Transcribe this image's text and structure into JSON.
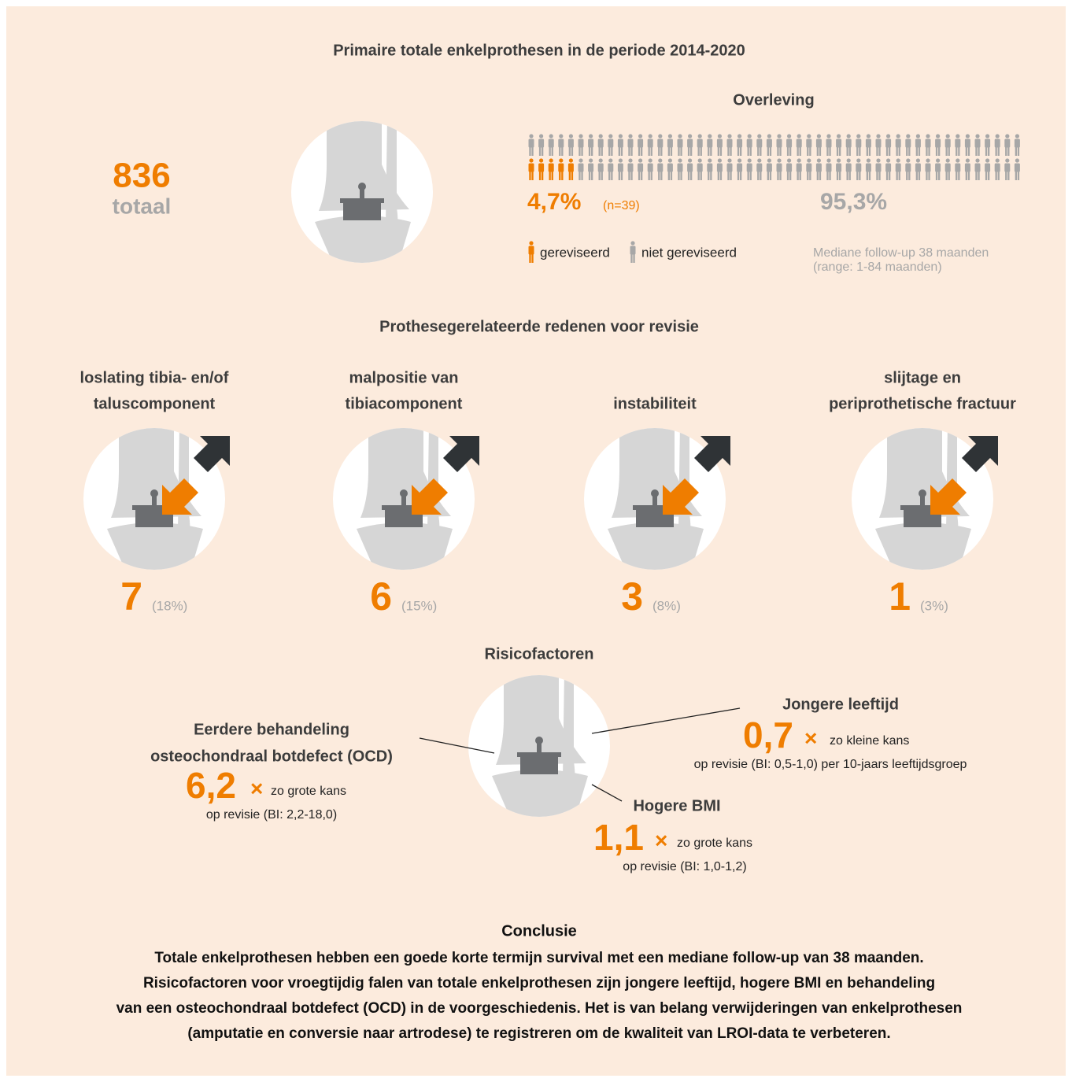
{
  "header": {
    "title": "Primaire totale enkelprothesen in de periode 2014-2020"
  },
  "total": {
    "value": 836,
    "label": "totaal"
  },
  "survival": {
    "title": "Overleving",
    "revised": {
      "pct": "4,7%",
      "n": "(n=39)"
    },
    "not_revised": {
      "pct": "95,3%"
    },
    "legend": [
      "gereviseerd",
      "niet gereviseerd"
    ],
    "follow_up": [
      "Mediane follow-up 38 maanden",
      "(range: 1-84 maanden)"
    ]
  },
  "reasons": {
    "title": "Prothesegerelateerde redenen voor revisie",
    "items": [
      {
        "label": [
          "loslating tibia- en/of",
          "taluscomponent"
        ],
        "count": 7,
        "pct": "(18%)"
      },
      {
        "label": [
          "malpositie van",
          "tibiacomponent"
        ],
        "count": 6,
        "pct": "(15%)"
      },
      {
        "label": [
          "instabiliteit"
        ],
        "count": 3,
        "pct": "(8%)"
      },
      {
        "label": [
          "slijtage en",
          "periprothetische fractuur"
        ],
        "count": 1,
        "pct": "(3%)"
      }
    ]
  },
  "risks": {
    "title": "Risicofactoren",
    "items": [
      {
        "label": [
          "Eerdere behandeling",
          "osteochondraal botdefect (OCD)"
        ],
        "factor": "6,2",
        "sign": "×",
        "text": "zo grote kans",
        "ci": "op revisie (BI: 2,2-18,0)"
      },
      {
        "label": [
          "Jongere leeftijd"
        ],
        "factor": "0,7",
        "sign": "×",
        "text": "zo kleine kans",
        "ci": "op revisie (BI: 0,5-1,0) per 10-jaars leeftijdsgroep"
      },
      {
        "label": [
          "Hogere BMI"
        ],
        "factor": "1,1",
        "sign": "×",
        "text": "zo grote kans",
        "ci": "op revisie (BI: 1,0-1,2)"
      }
    ]
  },
  "conclusion": {
    "title": "Conclusie",
    "lines": [
      "Totale enkelprothesen hebben een goede korte termijn survival met een mediane follow-up van 38 maanden.",
      "Risicofactoren voor vroegtijdig falen van totale enkelprothesen zijn jongere leeftijd,  hogere BMI en behandeling",
      "van een osteochondraal botdefect (OCD) in de voorgeschiedenis. Het is van belang verwijderingen van enkelprothesen",
      "(amputatie en conversie naar artrodese) te registreren om de kwaliteit van LROI-data te verbeteren."
    ]
  }
}
